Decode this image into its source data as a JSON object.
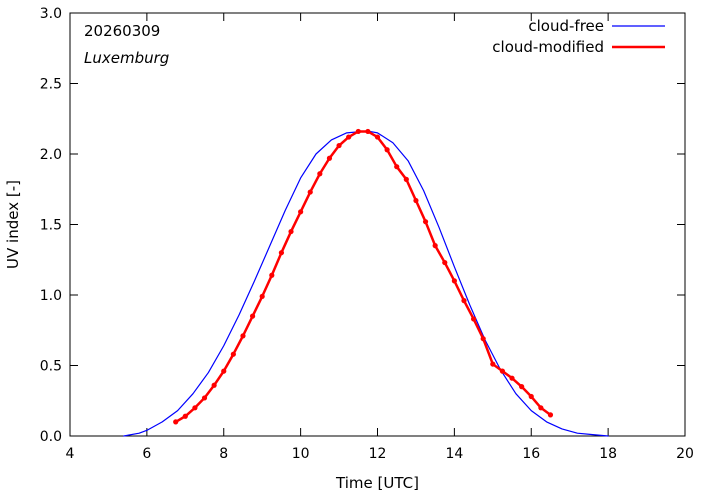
{
  "chart_data": {
    "type": "line",
    "title": "",
    "xlabel": "Time  [UTC]",
    "ylabel": "UV index  [-]",
    "xlim": [
      4,
      20
    ],
    "ylim": [
      0,
      3
    ],
    "x_ticks": [
      4,
      6,
      8,
      10,
      12,
      14,
      16,
      18,
      20
    ],
    "x_tick_labels": [
      "4",
      "6",
      "8",
      "10",
      "12",
      "14",
      "16",
      "18",
      "20"
    ],
    "y_ticks": [
      0,
      0.5,
      1,
      1.5,
      2,
      2.5,
      3
    ],
    "y_tick_labels": [
      "0.0",
      "0.5",
      "1.0",
      "1.5",
      "2.0",
      "2.5",
      "3.0"
    ],
    "grid": false,
    "legend_position": "top-right",
    "annotations": {
      "date": "20260309",
      "location": "Luxemburg"
    },
    "series": [
      {
        "name": "cloud-free",
        "color": "#0000ff",
        "style": "line",
        "x": [
          5.4,
          5.8,
          6.0,
          6.4,
          6.8,
          7.2,
          7.6,
          8.0,
          8.4,
          8.8,
          9.2,
          9.6,
          10.0,
          10.4,
          10.8,
          11.2,
          11.6,
          11.8,
          12.0,
          12.4,
          12.8,
          13.2,
          13.6,
          14.0,
          14.4,
          14.8,
          15.2,
          15.6,
          16.0,
          16.4,
          16.8,
          17.2,
          17.6,
          18.0
        ],
        "y": [
          0.0,
          0.02,
          0.04,
          0.1,
          0.18,
          0.3,
          0.45,
          0.64,
          0.86,
          1.1,
          1.35,
          1.6,
          1.83,
          2.0,
          2.1,
          2.15,
          2.16,
          2.16,
          2.15,
          2.08,
          1.95,
          1.74,
          1.48,
          1.2,
          0.93,
          0.68,
          0.47,
          0.3,
          0.18,
          0.1,
          0.05,
          0.02,
          0.01,
          0.0
        ]
      },
      {
        "name": "cloud-modified",
        "color": "#ff0000",
        "style": "linepoints",
        "x": [
          6.75,
          7.0,
          7.25,
          7.5,
          7.75,
          8.0,
          8.25,
          8.5,
          8.75,
          9.0,
          9.25,
          9.5,
          9.75,
          10.0,
          10.25,
          10.5,
          10.75,
          11.0,
          11.25,
          11.5,
          11.75,
          12.0,
          12.25,
          12.5,
          12.75,
          13.0,
          13.25,
          13.5,
          13.75,
          14.0,
          14.25,
          14.5,
          14.75,
          15.0,
          15.25,
          15.5,
          15.75,
          16.0,
          16.25,
          16.5
        ],
        "y": [
          0.1,
          0.14,
          0.2,
          0.27,
          0.36,
          0.46,
          0.58,
          0.71,
          0.85,
          0.99,
          1.14,
          1.3,
          1.45,
          1.59,
          1.73,
          1.86,
          1.97,
          2.06,
          2.12,
          2.16,
          2.16,
          2.12,
          2.03,
          1.91,
          1.82,
          1.67,
          1.52,
          1.35,
          1.23,
          1.1,
          0.96,
          0.83,
          0.69,
          0.51,
          0.46,
          0.41,
          0.35,
          0.28,
          0.2,
          0.15
        ]
      }
    ]
  }
}
